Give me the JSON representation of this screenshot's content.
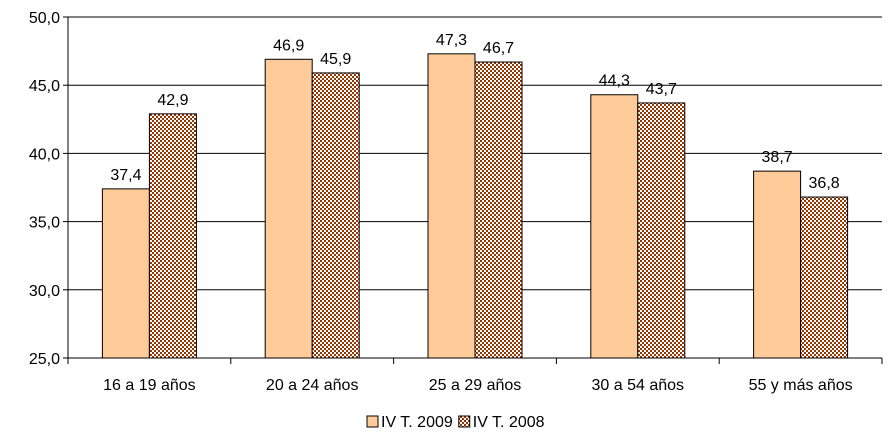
{
  "chart_data": {
    "type": "bar",
    "categories": [
      "16 a 19 años",
      "20 a 24 años",
      "25 a 29 años",
      "30 a 54 años",
      "55 y más años"
    ],
    "series": [
      {
        "name": "IV T. 2009",
        "values": [
          37.4,
          46.9,
          47.3,
          44.3,
          38.7
        ],
        "labels": [
          "37,4",
          "46,9",
          "47,3",
          "44,3",
          "38,7"
        ],
        "color": "#FFCC99",
        "pattern": "solid"
      },
      {
        "name": "IV T. 2008",
        "values": [
          42.9,
          45.9,
          46.7,
          43.7,
          36.8
        ],
        "labels": [
          "42,9",
          "45,9",
          "46,7",
          "43,7",
          "36,8"
        ],
        "color": "#993300",
        "pattern": "checker"
      }
    ],
    "ylim": [
      25.0,
      50.0
    ],
    "yticks": [
      25.0,
      30.0,
      35.0,
      40.0,
      45.0,
      50.0
    ],
    "ytick_labels": [
      "25,0",
      "30,0",
      "35,0",
      "40,0",
      "45,0",
      "50,0"
    ],
    "grid": true,
    "legend_position": "bottom",
    "title": "",
    "xlabel": "",
    "ylabel": ""
  }
}
